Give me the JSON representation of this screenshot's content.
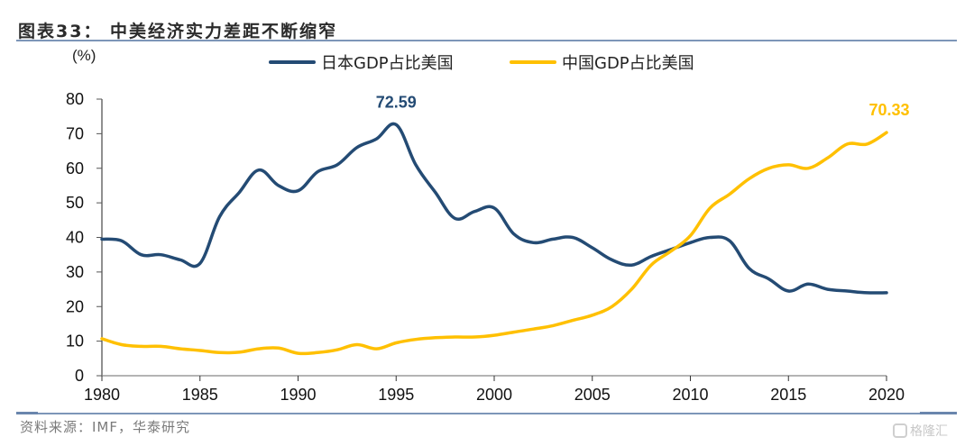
{
  "header": {
    "title": "图表33： 中美经济实力差距不断缩窄"
  },
  "footer": {
    "source": "资料来源：IMF，华泰研究",
    "watermark": "格隆汇"
  },
  "chart_data": {
    "type": "line",
    "title": "中美经济实力差距不断缩窄",
    "ylabel": "(%)",
    "xlabel": "",
    "ylim": [
      0,
      80
    ],
    "yticks": [
      0,
      10,
      20,
      30,
      40,
      50,
      60,
      70,
      80
    ],
    "xlim": [
      1980,
      2020
    ],
    "xticks": [
      1980,
      1985,
      1990,
      1995,
      2000,
      2005,
      2010,
      2015,
      2020
    ],
    "grid": false,
    "legend_position": "top-center",
    "x": [
      1980,
      1981,
      1982,
      1983,
      1984,
      1985,
      1986,
      1987,
      1988,
      1989,
      1990,
      1991,
      1992,
      1993,
      1994,
      1995,
      1996,
      1997,
      1998,
      1999,
      2000,
      2001,
      2002,
      2003,
      2004,
      2005,
      2006,
      2007,
      2008,
      2009,
      2010,
      2011,
      2012,
      2013,
      2014,
      2015,
      2016,
      2017,
      2018,
      2019,
      2020
    ],
    "series": [
      {
        "name": "日本GDP占比美国",
        "color": "#244b74",
        "values": [
          39.5,
          39,
          35,
          35,
          33.5,
          32.5,
          46,
          53,
          59.5,
          55,
          53.5,
          59,
          61,
          66,
          68.5,
          72.59,
          61,
          53,
          45.5,
          47.5,
          48.5,
          41,
          38.5,
          39.5,
          40,
          37,
          33.5,
          32,
          34.5,
          36.5,
          38.5,
          40,
          39,
          31,
          28,
          24.5,
          26.5,
          25,
          24.5,
          24,
          24
        ],
        "annotation": {
          "year": 1995,
          "label": "72.59"
        }
      },
      {
        "name": "中国GDP占比美国",
        "color": "#ffc000",
        "values": [
          10.7,
          9,
          8.5,
          8.5,
          7.8,
          7.3,
          6.7,
          6.8,
          7.8,
          8,
          6.5,
          6.7,
          7.5,
          9,
          7.8,
          9.5,
          10.5,
          11,
          11.2,
          11.2,
          11.7,
          12.6,
          13.5,
          14.5,
          16,
          17.5,
          20,
          25,
          32,
          36,
          40.5,
          48.5,
          52.5,
          57,
          60,
          61,
          60,
          63,
          67,
          67,
          70.33
        ],
        "annotation": {
          "year": 2020,
          "label": "70.33"
        }
      }
    ]
  }
}
